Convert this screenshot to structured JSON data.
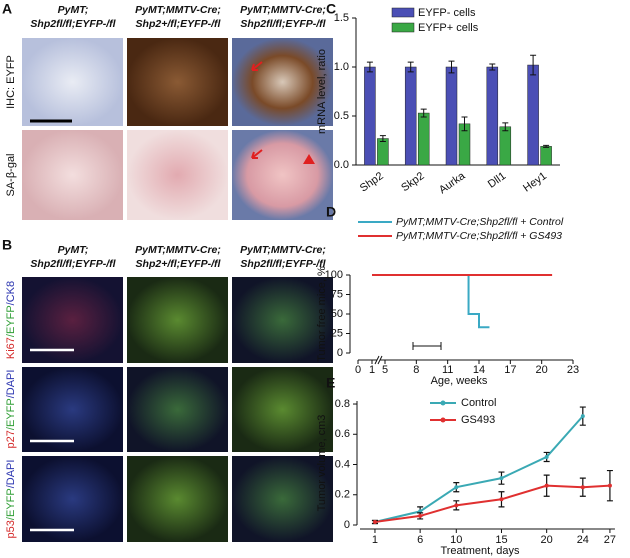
{
  "panel_a": {
    "label": "A",
    "column_headers": [
      [
        "PyMT;",
        "Shp2fl/fl;EYFP-/fl"
      ],
      [
        "PyMT;MMTV-Cre;",
        "Shp2+/fl;EYFP-/fl"
      ],
      [
        "PyMT;MMTV-Cre;",
        "Shp2fl/fl;EYFP-/fl"
      ]
    ],
    "row_labels": [
      "IHC: EYFP",
      "SA-β-gal"
    ]
  },
  "panel_b": {
    "label": "B",
    "column_headers": [
      [
        "PyMT;",
        "Shp2fl/fl;EYFP-/fl"
      ],
      [
        "PyMT;MMTV-Cre;",
        "Shp2+/fl;EYFP-/fl"
      ],
      [
        "PyMT;MMTV-Cre;",
        "Shp2fl/fl;EYFP-/fl"
      ]
    ],
    "row_labels": [
      [
        {
          "text": "Ki67",
          "color": "#d42a2a"
        },
        {
          "text": "/EYFP",
          "color": "#2f9e35"
        },
        {
          "text": "/CK8",
          "color": "#2b35b0"
        }
      ],
      [
        {
          "text": "p27",
          "color": "#d42a2a"
        },
        {
          "text": "/EYFP",
          "color": "#2f9e35"
        },
        {
          "text": "/DAPI",
          "color": "#2b35b0"
        }
      ],
      [
        {
          "text": "p53",
          "color": "#d42a2a"
        },
        {
          "text": "/EYFP",
          "color": "#2f9e35"
        },
        {
          "text": "/DAPI",
          "color": "#2b35b0"
        }
      ]
    ]
  },
  "chart_data": [
    {
      "type": "bar",
      "panel_label": "C",
      "y_label": "mRNA level, ratio",
      "categories": [
        "Shp2",
        "Skp2",
        "Aurka",
        "Dll1",
        "Hey1"
      ],
      "series": [
        {
          "name": "EYFP- cells",
          "color": "#4b4fb5",
          "values": [
            1,
            1,
            1,
            1,
            1.02
          ],
          "errors": [
            0.05,
            0.05,
            0.06,
            0.03,
            0.1
          ]
        },
        {
          "name": "EYFP+ cells",
          "color": "#3aa845",
          "values": [
            0.27,
            0.53,
            0.42,
            0.39,
            0.19
          ],
          "errors": [
            0.03,
            0.04,
            0.07,
            0.04,
            0.01
          ]
        }
      ],
      "ylim": [
        0,
        1.5
      ],
      "yticks": [
        {
          "value": 0,
          "label": "0.0"
        },
        {
          "value": 0.5,
          "label": "0.5"
        },
        {
          "value": 1,
          "label": "1.0"
        },
        {
          "value": 1.5,
          "label": "1.5"
        }
      ],
      "legend": "top"
    },
    {
      "type": "step",
      "panel_label": "D",
      "y_label": "Tumor free mice, %",
      "x_label": "Age, weeks",
      "series": [
        {
          "name": "PyMT;MMTV-Cre;Shp2fl/fl + Control",
          "color": "#3aa9c4",
          "x": [
            1,
            13,
            13,
            14,
            14,
            15
          ],
          "values": [
            100,
            100,
            50,
            50,
            33,
            33
          ]
        },
        {
          "name": "PyMT;MMTV-Cre;Shp2fl/fl + GS493",
          "color": "#e03030",
          "x": [
            1,
            21
          ],
          "values": [
            100,
            100
          ]
        }
      ],
      "xlim": [
        0,
        23
      ],
      "xbreak": [
        1,
        5
      ],
      "xticks": [
        0,
        1,
        5,
        8,
        11,
        14,
        17,
        20,
        23
      ],
      "ylim": [
        0,
        100
      ],
      "yticks": [
        0,
        25,
        50,
        75,
        100
      ],
      "legend": "top"
    },
    {
      "type": "line",
      "panel_label": "E",
      "y_label": "Tumor volume, cm3",
      "x_label": "Treatment, days",
      "series": [
        {
          "name": "Control",
          "color": "#3aa9b4",
          "x": [
            1,
            6,
            10,
            15,
            20,
            24
          ],
          "values": [
            0.02,
            0.09,
            0.25,
            0.31,
            0.45,
            0.72
          ],
          "errors": [
            0.01,
            0.03,
            0.03,
            0.04,
            0.03,
            0.06
          ]
        },
        {
          "name": "GS493",
          "color": "#e03030",
          "x": [
            1,
            6,
            10,
            15,
            20,
            24,
            27
          ],
          "values": [
            0.02,
            0.06,
            0.13,
            0.17,
            0.26,
            0.25,
            0.26
          ],
          "errors": [
            0.01,
            0.02,
            0.03,
            0.05,
            0.07,
            0.06,
            0.1
          ]
        }
      ],
      "xlim": [
        -0.5,
        29
      ],
      "xticks": [
        1,
        6,
        10,
        15,
        20,
        24,
        27
      ],
      "ylim": [
        0,
        0.82
      ],
      "yticks": [
        0,
        0.2,
        0.4,
        0.6,
        0.8
      ],
      "legend": "top-left"
    }
  ]
}
